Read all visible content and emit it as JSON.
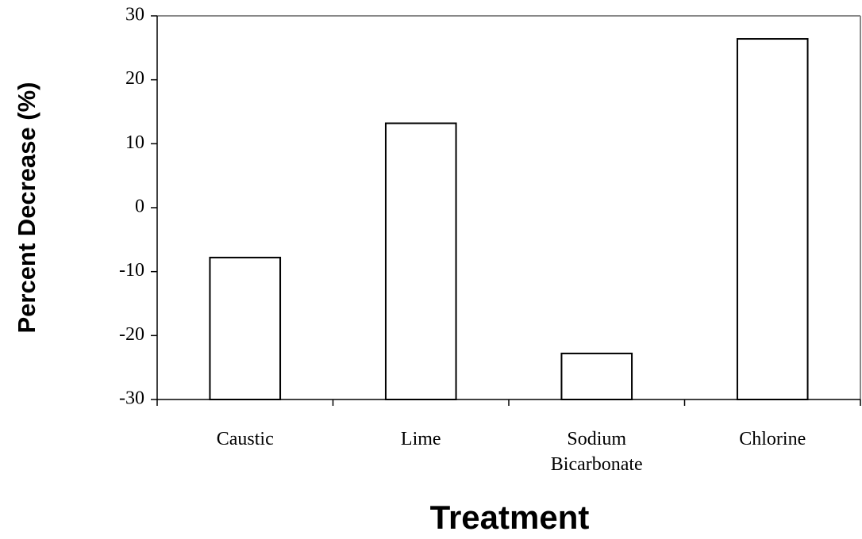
{
  "chart_data": {
    "type": "bar",
    "x_label": "Treatment",
    "y_label": "Percent Decrease (%)",
    "categories": [
      "Caustic",
      "Lime",
      "Sodium Bicarbonate",
      "Chlorine"
    ],
    "values": [
      -7.8,
      13.2,
      -22.8,
      26.4
    ],
    "color": "#ffffff",
    "ylim": [
      -30,
      30
    ],
    "yticks": [
      -30,
      -20,
      -10,
      0,
      10,
      20,
      30
    ],
    "grid": false
  }
}
